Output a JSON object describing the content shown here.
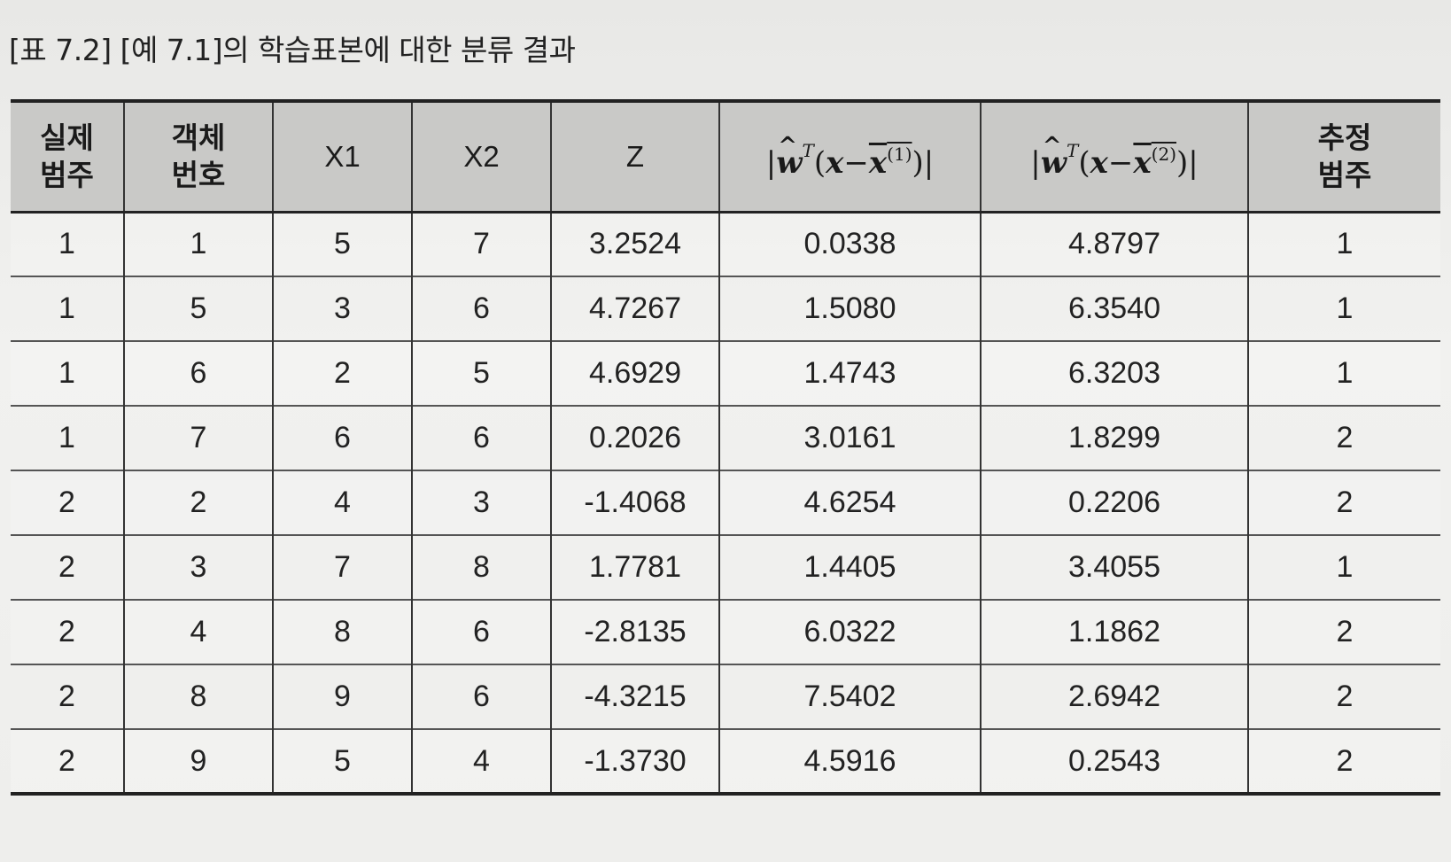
{
  "caption": "[표 7.2] [예 7.1]의 학습표본에 대한 분류 결과",
  "table": {
    "headers": [
      {
        "line1": "실제",
        "line2": "범주"
      },
      {
        "line1": "객체",
        "line2": "번호"
      },
      {
        "label": "X1"
      },
      {
        "label": "X2"
      },
      {
        "label": "Z"
      },
      {
        "formula": "|ŵT(x − x(1))|",
        "bar_a": "|",
        "w": "w",
        "hat": "^",
        "sup": "T",
        "open": "(",
        "x": "x",
        "minus": "−",
        "xbar": "x",
        "idx": "(1)",
        "close": ")",
        "bar_b": "|"
      },
      {
        "formula": "|ŵT(x − x(2))|",
        "bar_a": "|",
        "w": "w",
        "hat": "^",
        "sup": "T",
        "open": "(",
        "x": "x",
        "minus": "−",
        "xbar": "x",
        "idx": "(2)",
        "close": ")",
        "bar_b": "|"
      },
      {
        "line1": "추정",
        "line2": "범주"
      }
    ],
    "rows": [
      [
        "1",
        "1",
        "5",
        "7",
        "3.2524",
        "0.0338",
        "4.8797",
        "1"
      ],
      [
        "1",
        "5",
        "3",
        "6",
        "4.7267",
        "1.5080",
        "6.3540",
        "1"
      ],
      [
        "1",
        "6",
        "2",
        "5",
        "4.6929",
        "1.4743",
        "6.3203",
        "1"
      ],
      [
        "1",
        "7",
        "6",
        "6",
        "0.2026",
        "3.0161",
        "1.8299",
        "2"
      ],
      [
        "2",
        "2",
        "4",
        "3",
        "-1.4068",
        "4.6254",
        "0.2206",
        "2"
      ],
      [
        "2",
        "3",
        "7",
        "8",
        "1.7781",
        "1.4405",
        "3.4055",
        "1"
      ],
      [
        "2",
        "4",
        "8",
        "6",
        "-2.8135",
        "6.0322",
        "1.1862",
        "2"
      ],
      [
        "2",
        "8",
        "9",
        "6",
        "-4.3215",
        "7.5402",
        "2.6942",
        "2"
      ],
      [
        "2",
        "9",
        "5",
        "4",
        "-1.3730",
        "4.5916",
        "0.2543",
        "2"
      ]
    ]
  }
}
